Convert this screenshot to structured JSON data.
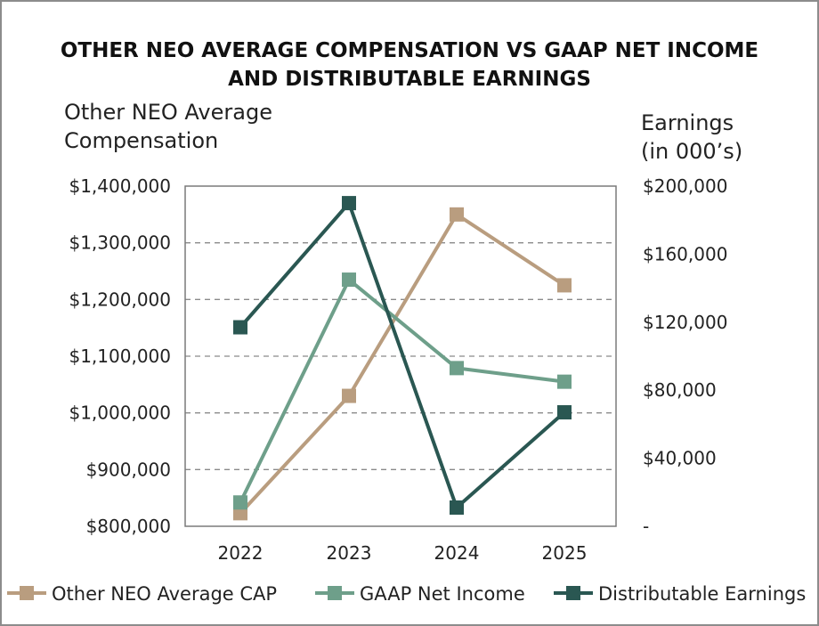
{
  "chart_data": {
    "type": "line",
    "title_lines": [
      "OTHER NEO AVERAGE COMPENSATION VS GAAP NET INCOME",
      "AND DISTRIBUTABLE EARNINGS"
    ],
    "y_left_label_lines": [
      "Other NEO Average",
      "Compensation"
    ],
    "y_right_label_lines": [
      "Earnings",
      "(in 000’s)"
    ],
    "categories": [
      "2022",
      "2023",
      "2024",
      "2025"
    ],
    "y_left": {
      "min": 800000,
      "max": 1400000,
      "ticks": [
        1400000,
        1300000,
        1200000,
        1100000,
        1000000,
        900000,
        800000
      ],
      "tick_labels": [
        "$1,400,000",
        "$1,300,000",
        "$1,200,000",
        "$1,100,000",
        "$1,000,000",
        "$900,000",
        "$800,000"
      ]
    },
    "y_right": {
      "min": 0,
      "max": 200000,
      "ticks": [
        200000,
        160000,
        120000,
        80000,
        40000,
        0
      ],
      "tick_labels": [
        "$200,000",
        "$160,000",
        "$120,000",
        "$80,000",
        "$40,000",
        "-"
      ]
    },
    "series": [
      {
        "name": "Other NEO Average CAP",
        "axis": "left",
        "color": "#b99d7f",
        "values": [
          823000,
          1030000,
          1350000,
          1225000
        ]
      },
      {
        "name": "GAAP Net Income",
        "axis": "right",
        "color": "#6e9f8a",
        "values": [
          14000,
          145000,
          93000,
          85000
        ]
      },
      {
        "name": "Distributable Earnings",
        "axis": "right",
        "color": "#2a5752",
        "values": [
          117000,
          190000,
          11000,
          67000
        ]
      }
    ],
    "grid": "horizontal-dashed",
    "legend_position": "bottom"
  }
}
